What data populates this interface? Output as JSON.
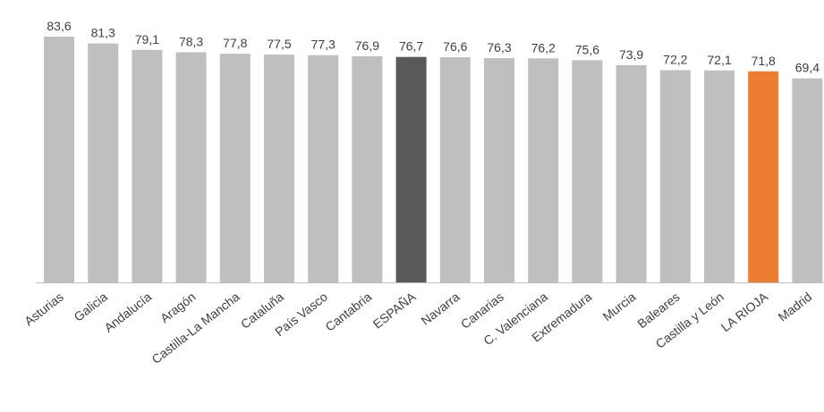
{
  "chart_data": {
    "type": "bar",
    "title": "",
    "xlabel": "",
    "ylabel": "",
    "ylim": [
      0,
      83.6
    ],
    "grid": false,
    "categories": [
      "Asturias",
      "Galicia",
      "Andalucía",
      "Aragón",
      "Castilla-La Mancha",
      "Cataluña",
      "País Vasco",
      "Cantabria",
      "ESPAÑA",
      "Navarra",
      "Canarias",
      "C. Valenciana",
      "Extremadura",
      "Murcia",
      "Baleares",
      "Castilla y León",
      "LA RIOJA",
      "Madrid"
    ],
    "values": [
      83.6,
      81.3,
      79.1,
      78.3,
      77.8,
      77.5,
      77.3,
      76.9,
      76.7,
      76.6,
      76.3,
      76.2,
      75.6,
      73.9,
      72.2,
      72.1,
      71.8,
      69.4
    ],
    "value_labels": [
      "83,6",
      "81,3",
      "79,1",
      "78,3",
      "77,8",
      "77,5",
      "77,3",
      "76,9",
      "76,7",
      "76,6",
      "76,3",
      "76,2",
      "75,6",
      "73,9",
      "72,2",
      "72,1",
      "71,8",
      "69,4"
    ],
    "colors": {
      "default": "#bfbfbf",
      "highlight_national": "#595959",
      "highlight_region": "#ed7d31",
      "axis": "#bfbfbf",
      "text": "#404040"
    },
    "highlight": {
      "ESPAÑA": "highlight_national",
      "LA RIOJA": "highlight_region"
    }
  }
}
